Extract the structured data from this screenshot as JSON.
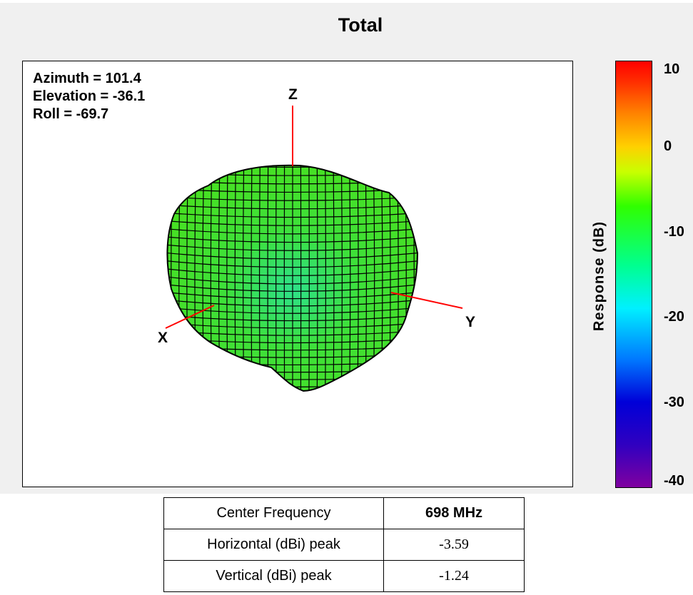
{
  "chart_data": {
    "type": "3d-radiation-pattern",
    "title": "Total",
    "view": {
      "azimuth_label": "Azimuth = 101.4",
      "elevation_label": "Elevation = -36.1",
      "roll_label": "Roll = -69.7"
    },
    "axes": {
      "x_label": "X",
      "y_label": "Y",
      "z_label": "Z"
    },
    "colorbar": {
      "label": "Response  (dB)",
      "range": [
        -40,
        10
      ],
      "ticks": [
        "10",
        "0",
        "-10",
        "-20",
        "-30",
        "-40"
      ],
      "tick_values": [
        10,
        0,
        -10,
        -20,
        -30,
        -40
      ],
      "pattern_color": "#33e000"
    }
  },
  "table": {
    "rows": [
      {
        "label": "Center Frequency",
        "value": "698 MHz"
      },
      {
        "label": "Horizontal (dBi) peak",
        "value": "-3.59"
      },
      {
        "label": "Vertical  (dBi)  peak",
        "value": "-1.24"
      }
    ]
  }
}
